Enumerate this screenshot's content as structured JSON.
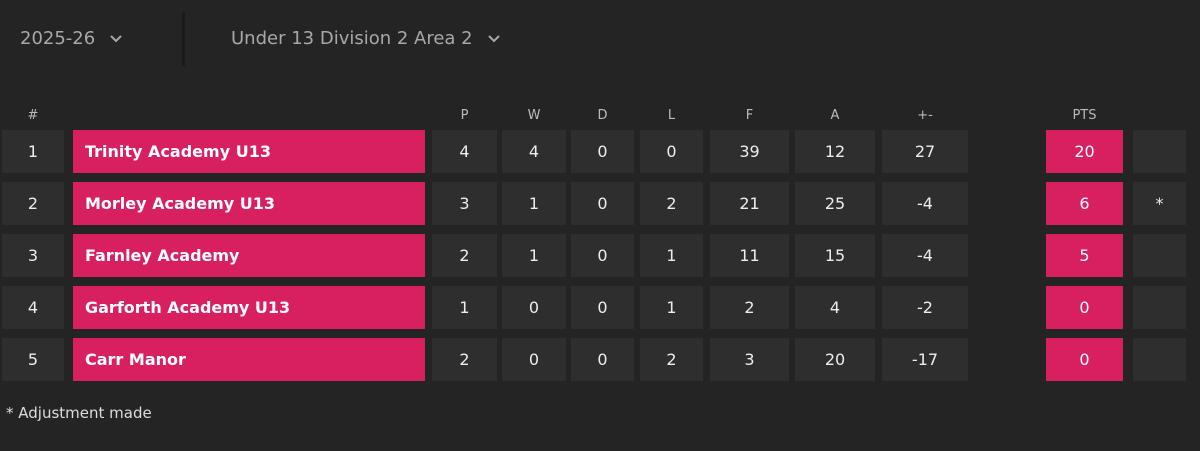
{
  "header": {
    "season": "2025-26",
    "division": "Under 13 Division 2 Area 2"
  },
  "table": {
    "columns": [
      "#",
      "P",
      "W",
      "D",
      "L",
      "F",
      "A",
      "+-",
      "PTS"
    ],
    "rows": [
      {
        "position": 1,
        "team": "Trinity Academy U13",
        "stats": [
          4,
          4,
          0,
          0,
          39,
          12,
          27
        ],
        "points": 20
      },
      {
        "position": 2,
        "team": "Morley Academy U13",
        "stats": [
          3,
          1,
          0,
          2,
          21,
          25,
          -4
        ],
        "points": 6,
        "note": "*"
      },
      {
        "position": 3,
        "team": "Farnley Academy",
        "stats": [
          2,
          1,
          0,
          1,
          11,
          15,
          -4
        ],
        "points": 5
      },
      {
        "position": 4,
        "team": "Garforth Academy U13",
        "stats": [
          1,
          0,
          0,
          1,
          2,
          4,
          -2
        ],
        "points": 0
      },
      {
        "position": 5,
        "team": "Carr Manor",
        "stats": [
          2,
          0,
          0,
          2,
          3,
          20,
          -17
        ],
        "points": 0
      }
    ]
  },
  "footnote": "* Adjustment made"
}
